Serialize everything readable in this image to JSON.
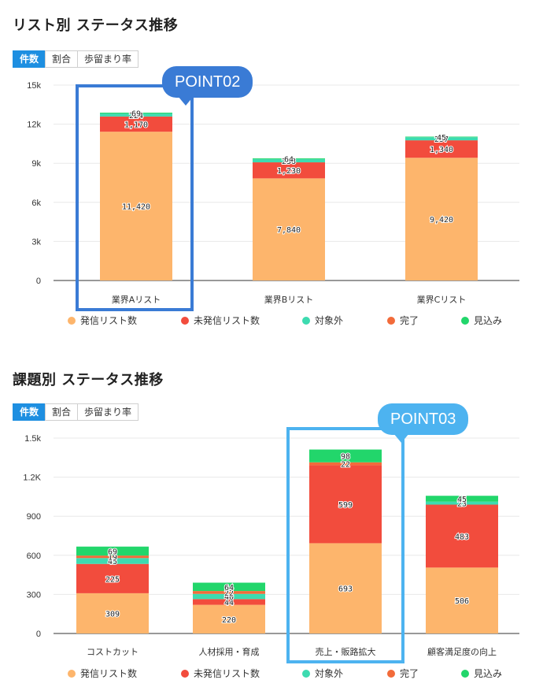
{
  "sections": [
    {
      "title": "リスト別 ステータス推移",
      "tabs": [
        "件数",
        "割合",
        "歩留まり率"
      ],
      "active_tab": 0,
      "callout": "POINT02",
      "callout_color": "#3a7bd5",
      "highlight_color": "#3a7bd5",
      "legend": [
        {
          "label": "発信リスト数",
          "color": "#fdb56c"
        },
        {
          "label": "未発信リスト数",
          "color": "#f24c3d"
        },
        {
          "label": "対象外",
          "color": "#3ddbb0"
        },
        {
          "label": "完了",
          "color": "#f26b3a"
        },
        {
          "label": "見込み",
          "color": "#22d66b"
        }
      ]
    },
    {
      "title": "課題別 ステータス推移",
      "tabs": [
        "件数",
        "割合",
        "歩留まり率"
      ],
      "active_tab": 0,
      "callout": "POINT03",
      "callout_color": "#4db3f0",
      "highlight_color": "#4db3f0",
      "legend": [
        {
          "label": "発信リスト数",
          "color": "#fdb56c"
        },
        {
          "label": "未発信リスト数",
          "color": "#f24c3d"
        },
        {
          "label": "対象外",
          "color": "#3ddbb0"
        },
        {
          "label": "完了",
          "color": "#f26b3a"
        },
        {
          "label": "見込み",
          "color": "#22d66b"
        }
      ]
    }
  ],
  "chart_data": [
    {
      "type": "bar",
      "stacked": true,
      "title": "リスト別 ステータス推移",
      "categories": [
        "業界Aリスト",
        "業界Bリスト",
        "業界Cリスト"
      ],
      "ylim": [
        0,
        15000
      ],
      "yticks": [
        0,
        3000,
        6000,
        9000,
        12000,
        15000
      ],
      "ytick_labels": [
        "0",
        "3k",
        "6k",
        "9k",
        "12k",
        "15k"
      ],
      "grid": true,
      "legend_position": "bottom",
      "series": [
        {
          "name": "発信リスト数",
          "color": "#fdb56c",
          "values": [
            11420,
            7840,
            9420
          ],
          "labels": [
            "11,420",
            "7,840",
            "9,420"
          ]
        },
        {
          "name": "未発信リスト数",
          "color": "#f24c3d",
          "values": [
            1170,
            1230,
            1340
          ],
          "labels": [
            "1,170",
            "1,230",
            "1,340"
          ]
        },
        {
          "name": "対象外",
          "color": "#3ddbb0",
          "values": [
            224,
            238,
            237
          ],
          "labels": [
            "224",
            "238",
            "237"
          ]
        },
        {
          "name": "完了",
          "color": "#f26b3a",
          "values": [
            0,
            0,
            0
          ],
          "labels": [
            "",
            "",
            ""
          ]
        },
        {
          "name": "見込み",
          "color": "#22d66b",
          "values": [
            69,
            64,
            45
          ],
          "labels": [
            "69",
            "64",
            "45"
          ]
        }
      ]
    },
    {
      "type": "bar",
      "stacked": true,
      "title": "課題別 ステータス推移",
      "categories": [
        "コストカット",
        "人材採用・育成",
        "売上・販路拡大",
        "顧客満足度の向上"
      ],
      "ylim": [
        0,
        1500
      ],
      "yticks": [
        0,
        300,
        600,
        900,
        1200,
        1500
      ],
      "ytick_labels": [
        "0",
        "300",
        "600",
        "900",
        "1.2K",
        "1.5k"
      ],
      "grid": true,
      "legend_position": "bottom",
      "series": [
        {
          "name": "発信リスト数",
          "color": "#fdb56c",
          "values": [
            309,
            220,
            693,
            506
          ],
          "labels": [
            "309",
            "220",
            "693",
            "506"
          ]
        },
        {
          "name": "未発信リスト数",
          "color": "#f24c3d",
          "values": [
            225,
            44,
            599,
            483
          ],
          "labels": [
            "225",
            "44",
            "599",
            "483"
          ]
        },
        {
          "name": "対象外",
          "color": "#3ddbb0",
          "values": [
            45,
            40,
            0,
            23
          ],
          "labels": [
            "45",
            "40",
            "",
            "23"
          ]
        },
        {
          "name": "完了",
          "color": "#f26b3a",
          "values": [
            19,
            22,
            22,
            0
          ],
          "labels": [
            "19",
            "22",
            "22",
            ""
          ]
        },
        {
          "name": "見込み",
          "color": "#22d66b",
          "values": [
            69,
            64,
            98,
            45
          ],
          "labels": [
            "69",
            "64",
            "98",
            "45"
          ]
        }
      ]
    }
  ]
}
